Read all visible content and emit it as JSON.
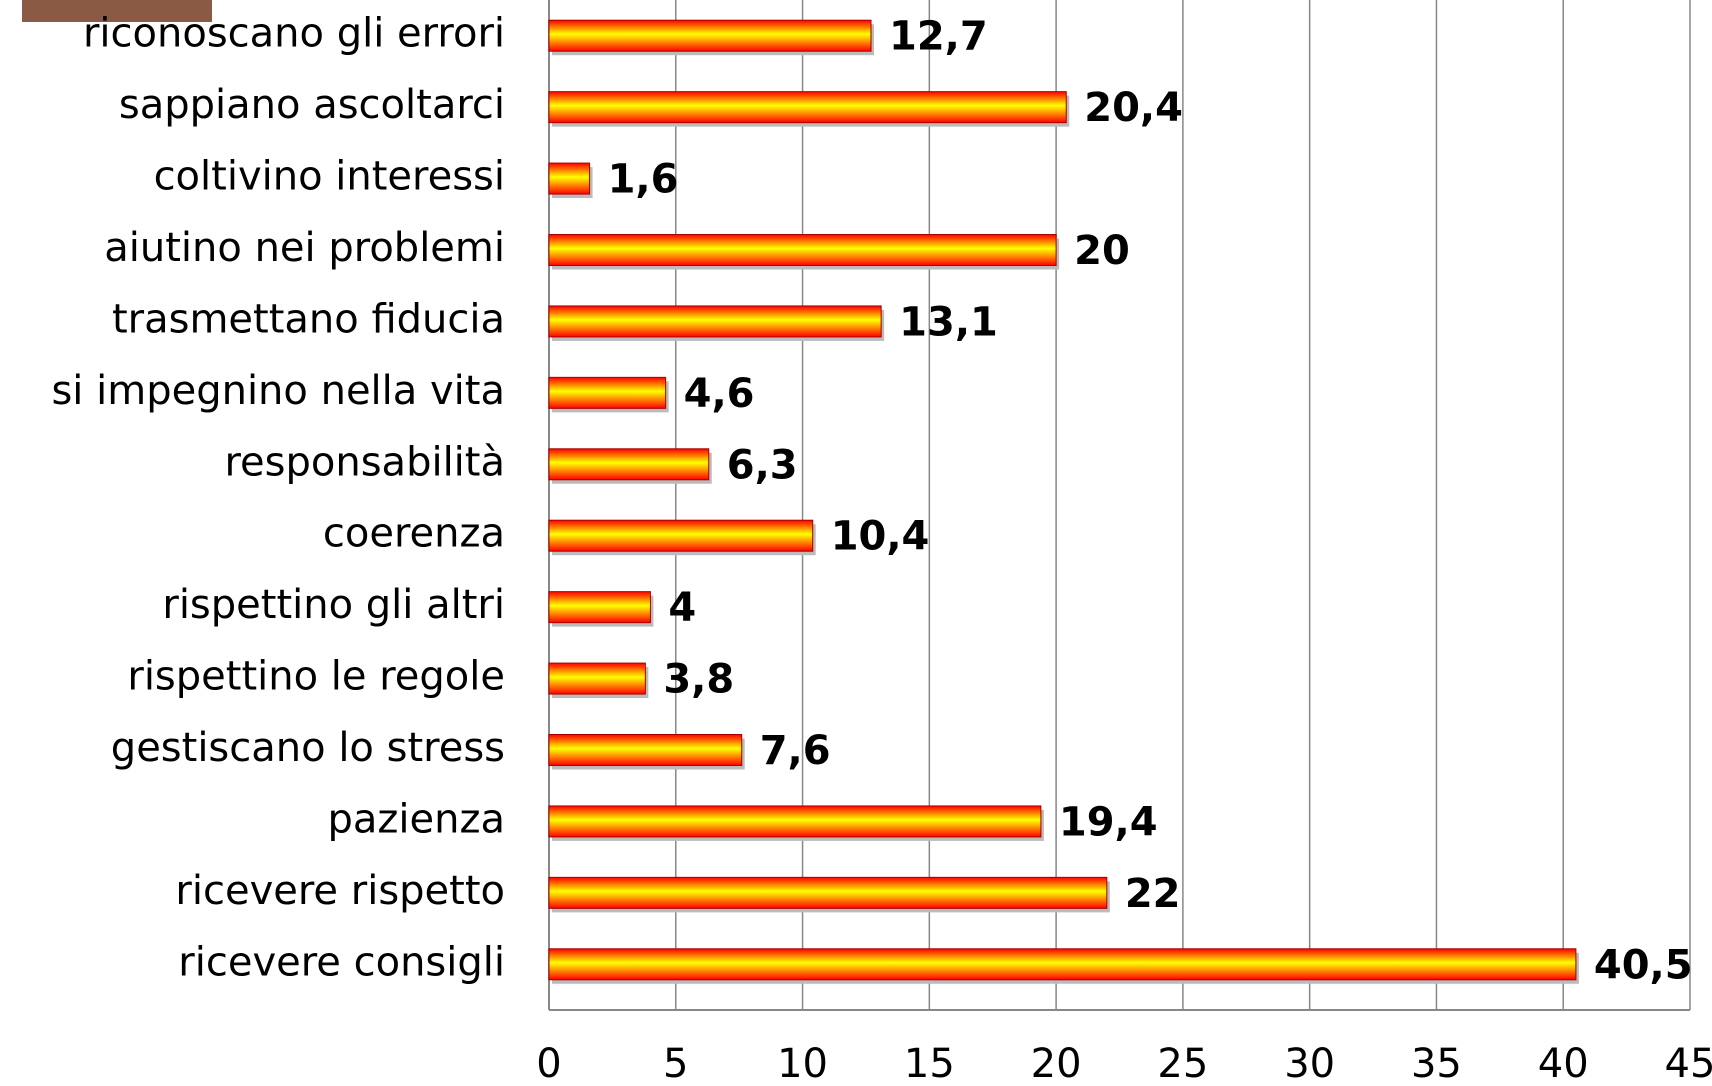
{
  "chart_data": {
    "type": "bar",
    "orientation": "horizontal",
    "categories": [
      "riconoscano gli errori",
      "sappiano ascoltarci",
      "coltivino interessi",
      "aiutino nei problemi",
      "trasmettano fiducia",
      "si impegnino nella vita",
      "responsabilità",
      "coerenza",
      "rispettino gli altri",
      "rispettino le regole",
      "gestiscano lo stress",
      "pazienza",
      "ricevere rispetto",
      "ricevere consigli"
    ],
    "values": [
      12.7,
      20.4,
      1.6,
      20,
      13.1,
      4.6,
      6.3,
      10.4,
      4,
      3.8,
      7.6,
      19.4,
      22,
      40.5
    ],
    "value_labels": [
      "12,7",
      "20,4",
      "1,6",
      "20",
      "13,1",
      "4,6",
      "6,3",
      "10,4",
      "4",
      "3,8",
      "7,6",
      "19,4",
      "22",
      "40,5"
    ],
    "color": [
      "#ff0000",
      "#ffff00"
    ],
    "xlim": [
      0,
      45
    ],
    "xticks": [
      0,
      5,
      10,
      15,
      20,
      25,
      30,
      35,
      40,
      45
    ],
    "grid": true
  }
}
